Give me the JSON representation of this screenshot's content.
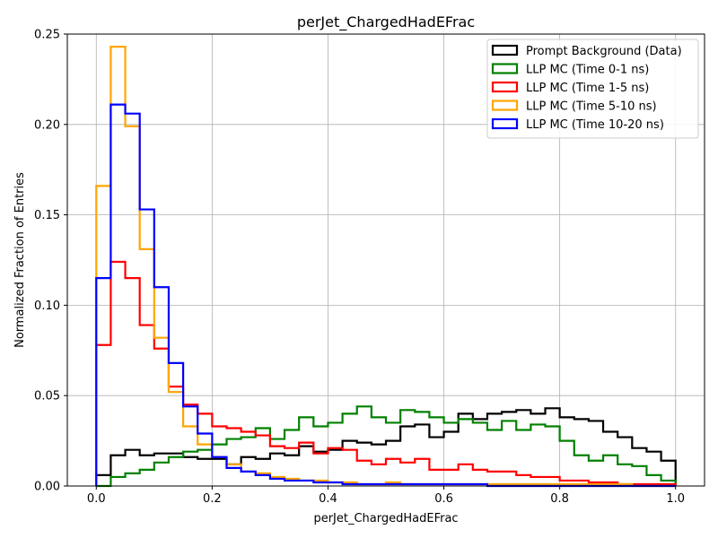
{
  "chart_data": {
    "type": "histogram-step",
    "title": "perJet_ChargedHadEFrac",
    "xlabel": "perJet_ChargedHadEFrac",
    "ylabel": "Normalized Fraction of Entries",
    "xlim": [
      -0.05,
      1.05
    ],
    "ylim": [
      0,
      0.25
    ],
    "xticks": [
      0.0,
      0.2,
      0.4,
      0.6,
      0.8,
      1.0
    ],
    "xtick_labels": [
      "0.0",
      "0.2",
      "0.4",
      "0.6",
      "0.8",
      "1.0"
    ],
    "yticks": [
      0.0,
      0.05,
      0.1,
      0.15,
      0.2,
      0.25
    ],
    "ytick_labels": [
      "0.00",
      "0.05",
      "0.10",
      "0.15",
      "0.20",
      "0.25"
    ],
    "grid": true,
    "legend_position": "top-right",
    "bin_edges_range": [
      0,
      1
    ],
    "n_bins": 40,
    "series": [
      {
        "name": "Prompt Background (Data)",
        "color": "#000000",
        "values": [
          0.006,
          0.017,
          0.02,
          0.017,
          0.018,
          0.018,
          0.016,
          0.015,
          0.015,
          0.012,
          0.016,
          0.015,
          0.018,
          0.017,
          0.022,
          0.019,
          0.02,
          0.025,
          0.024,
          0.023,
          0.025,
          0.033,
          0.034,
          0.027,
          0.03,
          0.04,
          0.037,
          0.04,
          0.041,
          0.042,
          0.04,
          0.043,
          0.038,
          0.037,
          0.036,
          0.03,
          0.027,
          0.021,
          0.019,
          0.014
        ]
      },
      {
        "name": "LLP MC (Time 0-1 ns)",
        "color": "#008000",
        "values": [
          0.0,
          0.005,
          0.007,
          0.009,
          0.013,
          0.016,
          0.019,
          0.02,
          0.023,
          0.026,
          0.027,
          0.032,
          0.026,
          0.031,
          0.038,
          0.033,
          0.035,
          0.04,
          0.044,
          0.038,
          0.035,
          0.042,
          0.041,
          0.038,
          0.035,
          0.037,
          0.035,
          0.031,
          0.036,
          0.031,
          0.034,
          0.033,
          0.025,
          0.017,
          0.014,
          0.017,
          0.012,
          0.011,
          0.006,
          0.003
        ]
      },
      {
        "name": "LLP MC (Time 1-5 ns)",
        "color": "#ff0000",
        "values": [
          0.078,
          0.124,
          0.115,
          0.089,
          0.076,
          0.055,
          0.045,
          0.04,
          0.033,
          0.032,
          0.03,
          0.028,
          0.022,
          0.021,
          0.024,
          0.018,
          0.021,
          0.02,
          0.014,
          0.012,
          0.015,
          0.013,
          0.015,
          0.009,
          0.009,
          0.012,
          0.009,
          0.008,
          0.008,
          0.006,
          0.005,
          0.005,
          0.003,
          0.003,
          0.002,
          0.002,
          0.001,
          0.001,
          0.001,
          0.001
        ]
      },
      {
        "name": "LLP MC (Time 5-10 ns)",
        "color": "#ffa500",
        "values": [
          0.166,
          0.243,
          0.199,
          0.131,
          0.082,
          0.052,
          0.033,
          0.023,
          0.016,
          0.012,
          0.008,
          0.007,
          0.005,
          0.004,
          0.003,
          0.003,
          0.002,
          0.002,
          0.001,
          0.001,
          0.002,
          0.001,
          0.001,
          0.001,
          0.001,
          0.001,
          0.001,
          0.001,
          0.001,
          0.001,
          0.001,
          0.001,
          0.001,
          0.001,
          0.001,
          0.001,
          0.001,
          0.0,
          0.0,
          0.0
        ]
      },
      {
        "name": "LLP MC (Time 10-20 ns)",
        "color": "#0000ff",
        "values": [
          0.115,
          0.211,
          0.206,
          0.153,
          0.11,
          0.068,
          0.044,
          0.029,
          0.016,
          0.01,
          0.008,
          0.006,
          0.004,
          0.003,
          0.003,
          0.002,
          0.002,
          0.001,
          0.001,
          0.001,
          0.001,
          0.001,
          0.001,
          0.001,
          0.001,
          0.001,
          0.001,
          0.0,
          0.0,
          0.0,
          0.0,
          0.0,
          0.0,
          0.0,
          0.0,
          0.0,
          0.0,
          0.0,
          0.0,
          0.0
        ]
      }
    ]
  }
}
